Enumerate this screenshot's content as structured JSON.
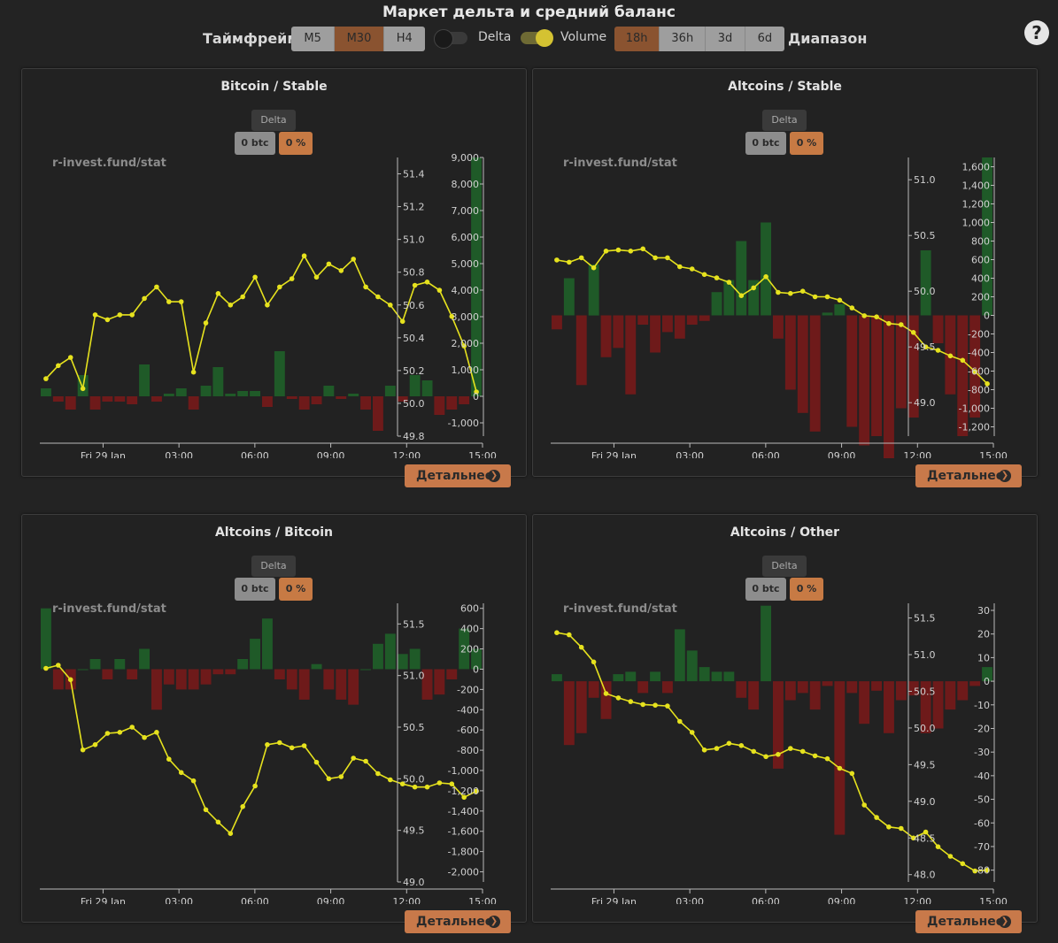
{
  "header": {
    "title": "Маркет дельта и средний баланс",
    "timeframe_label": "Таймфрейм",
    "timeframes": [
      "M5",
      "M30",
      "H4"
    ],
    "active_timeframe": "M30",
    "delta_toggle_label": "Delta",
    "delta_toggle_on": false,
    "volume_toggle_label": "Volume",
    "volume_toggle_on": true,
    "ranges": [
      "18h",
      "36h",
      "3d",
      "6d"
    ],
    "active_range": "18h",
    "range_label": "Диапазон",
    "help_icon": "question-circle-icon"
  },
  "colors": {
    "positive_bar": "#1f5a28",
    "negative_bar": "#6e1a1a",
    "line": "#e6e21e",
    "accent": "#c8794a"
  },
  "panels": [
    {
      "title": "Bitcoin / Stable",
      "delta_tag": "Delta",
      "chip_btc": "0 btc",
      "chip_pct": "0 %",
      "watermark": "r-invest.fund/stat",
      "details_label": "Детальнее",
      "chart_data": {
        "type": "bar+line",
        "x_ticks": [
          "Fri 29 Jan",
          "03:00",
          "06:00",
          "09:00",
          "12:00",
          "15:00"
        ],
        "bars_axis": {
          "ticks": [
            "9,000",
            "8,000",
            "7,000",
            "6,000",
            "5,000",
            "4,000",
            "3,000",
            "2,000",
            "1,000",
            "0",
            "-1,000"
          ],
          "range": [
            -1500,
            9000
          ]
        },
        "line_axis": {
          "ticks": [
            "51.4",
            "51.2",
            "51.0",
            "50.8",
            "50.6",
            "50.4",
            "50.2",
            "50.0",
            "49.8"
          ],
          "range": [
            49.8,
            51.5
          ]
        },
        "bars": [
          300,
          -200,
          -500,
          800,
          -500,
          -200,
          -200,
          -300,
          1200,
          -200,
          100,
          300,
          -500,
          400,
          1100,
          100,
          200,
          200,
          -400,
          1700,
          -100,
          -500,
          -300,
          400,
          -100,
          100,
          -500,
          -1300,
          400,
          -200,
          800,
          600,
          -700,
          -500,
          -300,
          9000
        ],
        "line": [
          50.15,
          50.23,
          50.28,
          50.09,
          50.54,
          50.51,
          50.54,
          50.54,
          50.64,
          50.71,
          50.62,
          50.62,
          50.19,
          50.49,
          50.67,
          50.6,
          50.65,
          50.77,
          50.6,
          50.71,
          50.76,
          50.9,
          50.77,
          50.85,
          50.81,
          50.88,
          50.71,
          50.65,
          50.6,
          50.5,
          50.72,
          50.74,
          50.69,
          50.53,
          50.35,
          50.07
        ]
      }
    },
    {
      "title": "Altcoins / Stable",
      "delta_tag": "Delta",
      "chip_btc": "0 btc",
      "chip_pct": "0 %",
      "watermark": "r-invest.fund/stat",
      "details_label": "Детальнее",
      "chart_data": {
        "type": "bar+line",
        "x_ticks": [
          "Fri 29 Jan",
          "03:00",
          "06:00",
          "09:00",
          "12:00",
          "15:00"
        ],
        "bars_axis": {
          "ticks": [
            "1,600",
            "1,400",
            "1,200",
            "1,000",
            "800",
            "600",
            "400",
            "200",
            "0",
            "-200",
            "-400",
            "-600",
            "-800",
            "-1,000",
            "-1,200"
          ],
          "range": [
            -1300,
            1700
          ]
        },
        "line_axis": {
          "ticks": [
            "51.0",
            "50.5",
            "50.0",
            "49.5",
            "49.0"
          ],
          "range": [
            48.7,
            51.2
          ]
        },
        "bars": [
          -150,
          400,
          -750,
          550,
          -450,
          -350,
          -850,
          -100,
          -400,
          -180,
          -250,
          -100,
          -60,
          250,
          380,
          800,
          380,
          1000,
          -250,
          -800,
          -1050,
          -1250,
          30,
          120,
          -1200,
          -1400,
          -1300,
          -1700,
          -1000,
          -1100,
          700,
          -300,
          -850,
          -1300,
          -1100,
          1700
        ],
        "line": [
          50.28,
          50.26,
          50.3,
          50.21,
          50.36,
          50.37,
          50.36,
          50.38,
          50.3,
          50.3,
          50.22,
          50.2,
          50.15,
          50.12,
          50.08,
          49.96,
          50.03,
          50.13,
          49.99,
          49.98,
          50.0,
          49.95,
          49.95,
          49.92,
          49.85,
          49.78,
          49.77,
          49.71,
          49.7,
          49.63,
          49.5,
          49.47,
          49.42,
          49.38,
          49.28,
          49.17
        ]
      }
    },
    {
      "title": "Altcoins / Bitcoin",
      "delta_tag": "Delta",
      "chip_btc": "0 btc",
      "chip_pct": "0 %",
      "watermark": "r-invest.fund/stat",
      "details_label": "Детальнее",
      "chart_data": {
        "type": "bar+line",
        "x_ticks": [
          "Fri 29 Jan",
          "03:00",
          "06:00",
          "09:00",
          "12:00",
          "15:00"
        ],
        "bars_axis": {
          "ticks": [
            "600",
            "400",
            "200",
            "0",
            "-200",
            "-400",
            "-600",
            "-800",
            "-1,000",
            "-1,200",
            "-1,400",
            "-1,600",
            "-1,800",
            "-2,000"
          ],
          "range": [
            -2100,
            650
          ]
        },
        "line_axis": {
          "ticks": [
            "51.5",
            "51.0",
            "50.5",
            "50.0",
            "49.5",
            "49.0"
          ],
          "range": [
            49.0,
            51.7
          ]
        },
        "bars": [
          600,
          -200,
          -200,
          0,
          100,
          -100,
          100,
          -100,
          200,
          -400,
          -150,
          -200,
          -200,
          -150,
          -50,
          -50,
          100,
          300,
          500,
          -100,
          -200,
          -300,
          50,
          -200,
          -300,
          -350,
          0,
          250,
          350,
          150,
          200,
          -300,
          -250,
          -100,
          400,
          200
        ],
        "line": [
          51.07,
          51.1,
          50.96,
          50.28,
          50.33,
          50.44,
          50.45,
          50.5,
          50.4,
          50.45,
          50.19,
          50.06,
          49.98,
          49.7,
          49.58,
          49.47,
          49.73,
          49.93,
          50.33,
          50.35,
          50.3,
          50.32,
          50.16,
          50.0,
          50.02,
          50.2,
          50.17,
          50.05,
          49.99,
          49.95,
          49.92,
          49.92,
          49.96,
          49.95,
          49.82,
          49.88
        ]
      }
    },
    {
      "title": "Altcoins / Other",
      "delta_tag": "Delta",
      "chip_btc": "0 btc",
      "chip_pct": "0 %",
      "watermark": "r-invest.fund/stat",
      "details_label": "Детальнее",
      "chart_data": {
        "type": "bar+line",
        "x_ticks": [
          "Fri 29 Jan",
          "03:00",
          "06:00",
          "09:00",
          "12:00",
          "15:00"
        ],
        "bars_axis": {
          "ticks": [
            "30",
            "20",
            "10",
            "0",
            "-10",
            "-20",
            "-30",
            "-40",
            "-50",
            "-60",
            "-70",
            "-80"
          ],
          "range": [
            -85,
            33
          ]
        },
        "line_axis": {
          "ticks": [
            "51.5",
            "51.0",
            "50.5",
            "50.0",
            "49.5",
            "49.0",
            "48.5",
            "48.0"
          ],
          "range": [
            47.9,
            51.7
          ]
        },
        "bars": [
          3,
          -27,
          -22,
          -7,
          -16,
          3,
          4,
          -5,
          4,
          -5,
          22,
          13,
          6,
          4,
          4,
          -7,
          -12,
          32,
          -37,
          -8,
          -5,
          -12,
          -2,
          -65,
          -5,
          -18,
          -4,
          -22,
          -8,
          -6,
          -22,
          -20,
          -12,
          -8,
          -2,
          6
        ],
        "line": [
          51.3,
          51.27,
          51.1,
          50.9,
          50.47,
          50.41,
          50.36,
          50.32,
          50.31,
          50.3,
          50.09,
          49.94,
          49.7,
          49.72,
          49.79,
          49.76,
          49.68,
          49.61,
          49.64,
          49.72,
          49.68,
          49.62,
          49.58,
          49.45,
          49.38,
          48.95,
          48.78,
          48.65,
          48.63,
          48.5,
          48.58,
          48.38,
          48.25,
          48.15,
          48.05,
          48.06
        ]
      }
    }
  ]
}
